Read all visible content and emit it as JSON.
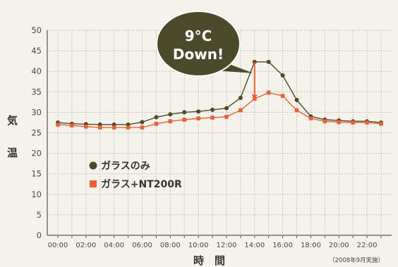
{
  "chart_data": {
    "type": "line",
    "x": [
      "00:00",
      "01:00",
      "02:00",
      "03:00",
      "04:00",
      "05:00",
      "06:00",
      "07:00",
      "08:00",
      "09:00",
      "10:00",
      "11:00",
      "12:00",
      "13:00",
      "14:00",
      "15:00",
      "16:00",
      "17:00",
      "18:00",
      "19:00",
      "20:00",
      "21:00",
      "22:00",
      "23:00"
    ],
    "xticklabels": [
      "00:00",
      "02:00",
      "04:00",
      "06:00",
      "08:00",
      "10:00",
      "12:00",
      "14:00",
      "16:00",
      "18:00",
      "20:00",
      "22:00"
    ],
    "yticks": [
      0,
      5,
      10,
      15,
      20,
      25,
      30,
      35,
      40,
      45,
      50
    ],
    "ylim": [
      0,
      50
    ],
    "ylabel": "気温",
    "xlabel": "時　間",
    "grid": true,
    "legend_placement": "lower-left",
    "series": [
      {
        "name": "ガラスのみ",
        "color": "#4b4a2a",
        "marker": "circle",
        "values": [
          27.5,
          27.2,
          27.1,
          27.0,
          27.0,
          27.0,
          27.6,
          28.8,
          29.5,
          30.0,
          30.2,
          30.6,
          31.0,
          33.5,
          42.3,
          42.3,
          39.0,
          33.0,
          29.0,
          28.2,
          28.0,
          27.8,
          27.8,
          27.5
        ]
      },
      {
        "name": "ガラス+NT200R",
        "color": "#e8603a",
        "marker": "square",
        "values": [
          27.0,
          26.8,
          26.5,
          26.3,
          26.3,
          26.3,
          26.3,
          27.2,
          27.8,
          28.2,
          28.5,
          28.7,
          28.9,
          30.5,
          33.3,
          34.8,
          34.0,
          30.5,
          28.5,
          27.8,
          27.6,
          27.5,
          27.5,
          27.2
        ]
      }
    ],
    "annotation": {
      "line1": "9°C",
      "line2": "Down!",
      "x": "14:00",
      "from": 42.3,
      "to": 33.3
    },
    "note": "（2008年9月実施）"
  }
}
